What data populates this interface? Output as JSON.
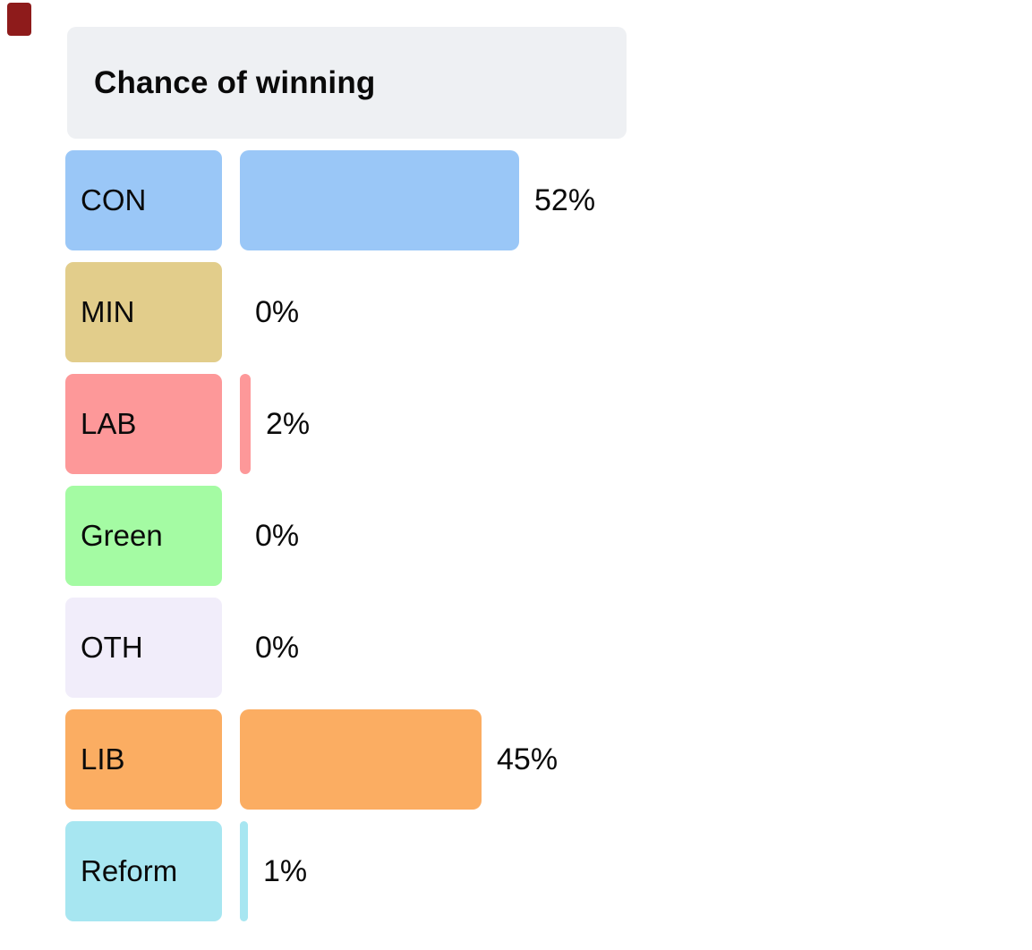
{
  "header": {
    "title": "Chance of winning",
    "bg_color": "#eef0f3"
  },
  "corner_marker": {
    "color": "#8e1b1b"
  },
  "text_color": "#0a0a0a",
  "chart_data": {
    "type": "bar",
    "orientation": "horizontal",
    "title": "Chance of winning",
    "categories": [
      "CON",
      "MIN",
      "LAB",
      "Green",
      "OTH",
      "LIB",
      "Reform"
    ],
    "values": [
      52,
      0,
      2,
      0,
      0,
      45,
      1
    ],
    "value_labels": [
      "52%",
      "0%",
      "2%",
      "0%",
      "0%",
      "45%",
      "1%"
    ],
    "colors": [
      "#9ac7f7",
      "#e2cd8b",
      "#fd9899",
      "#a4fba3",
      "#f1edfa",
      "#fbad62",
      "#a7e6f1"
    ],
    "unit": "%",
    "xlim": [
      0,
      100
    ],
    "grid": false,
    "legend": false,
    "value_label_position": "right-of-bar"
  }
}
